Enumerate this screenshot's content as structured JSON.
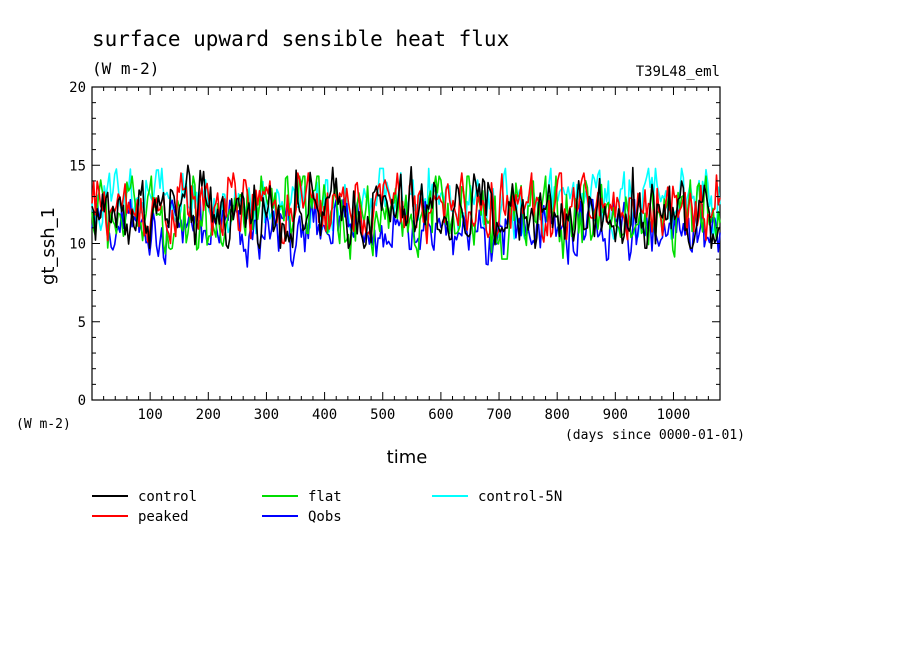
{
  "chart_data": {
    "type": "line",
    "title": "surface upward sensible heat flux",
    "subtitle": "(W m-2)",
    "run_label": "T39L48_eml",
    "ylabel": "gt_ssh_1",
    "y_unit": "(W m-2)",
    "xlabel": "time",
    "x_unit": "(days since 0000-01-01)",
    "xlim": [
      0,
      1080
    ],
    "ylim": [
      0,
      20
    ],
    "x_ticks": [
      100,
      200,
      300,
      400,
      500,
      600,
      700,
      800,
      900,
      1000
    ],
    "y_ticks": [
      0,
      5,
      10,
      15,
      20
    ],
    "grid": false,
    "legend_position": "bottom-left",
    "series": [
      {
        "name": "control",
        "color": "#000000",
        "mean": 12.0,
        "amplitude": 1.1,
        "min": 9.7,
        "max": 15.0
      },
      {
        "name": "peaked",
        "color": "#ff0000",
        "mean": 12.3,
        "amplitude": 1.0,
        "min": 10.0,
        "max": 14.5
      },
      {
        "name": "flat",
        "color": "#00dd00",
        "mean": 11.8,
        "amplitude": 1.2,
        "min": 9.0,
        "max": 14.3
      },
      {
        "name": "Qobs",
        "color": "#0000ff",
        "mean": 10.9,
        "amplitude": 0.9,
        "min": 8.5,
        "max": 12.8
      },
      {
        "name": "control-5N",
        "color": "#00ffff",
        "mean": 12.6,
        "amplitude": 1.0,
        "min": 10.3,
        "max": 14.8
      }
    ]
  }
}
